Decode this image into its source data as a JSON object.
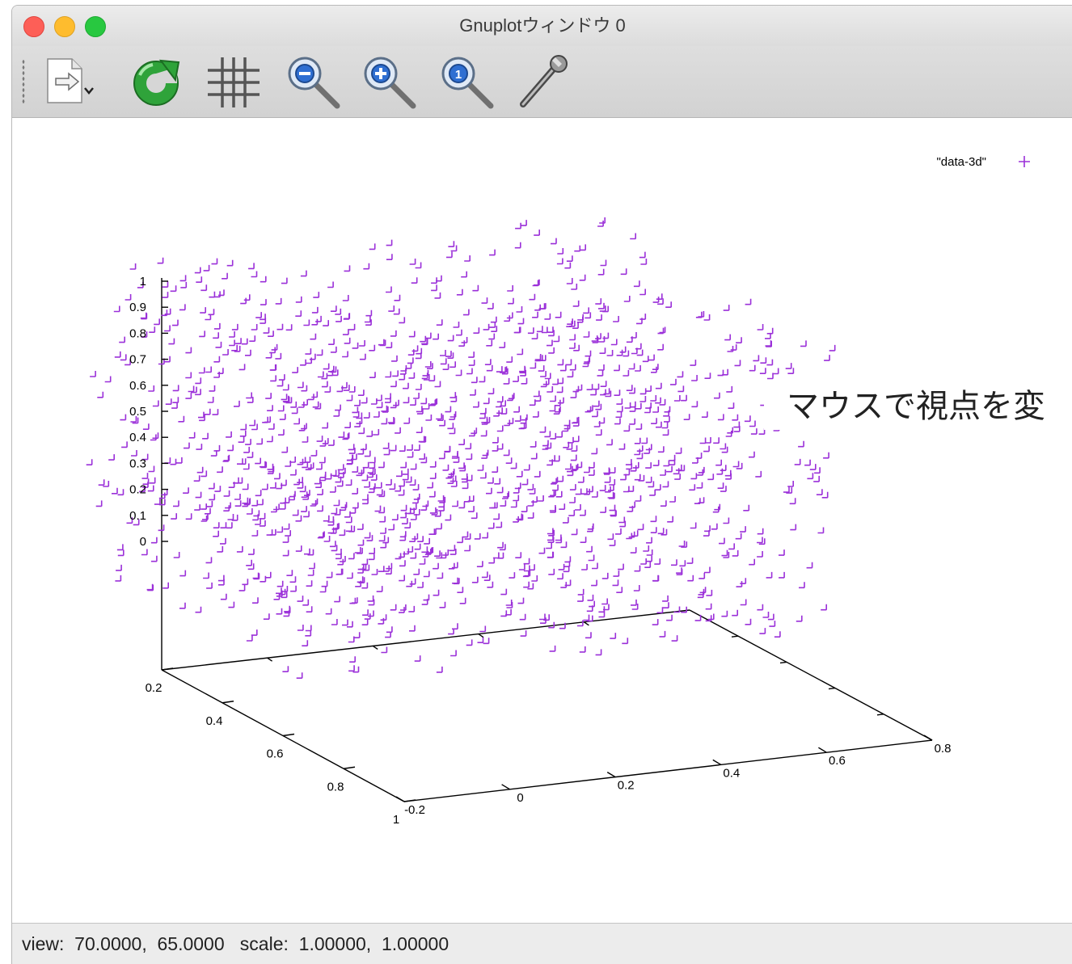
{
  "window": {
    "title": "Gnuplotウィンドウ 0"
  },
  "toolbar": {
    "buttons": [
      {
        "name": "export-button",
        "icon": "export-document-icon"
      },
      {
        "name": "replot-button",
        "icon": "refresh-icon"
      },
      {
        "name": "grid-button",
        "icon": "grid-icon"
      },
      {
        "name": "zoom-out-button",
        "icon": "zoom-out-icon"
      },
      {
        "name": "zoom-in-button",
        "icon": "zoom-in-icon"
      },
      {
        "name": "zoom-reset-button",
        "icon": "zoom-reset-icon"
      },
      {
        "name": "settings-button",
        "icon": "wrench-icon"
      }
    ]
  },
  "overlay": {
    "text": "マウスで視点を変"
  },
  "status": {
    "text": "view:  70.0000,  65.0000   scale:  1.00000,  1.00000"
  },
  "chart_data": {
    "type": "scatter",
    "view": [
      70,
      65
    ],
    "series": [
      {
        "name": "\"data-3d\"",
        "marker": "+",
        "color": "#9B30D9",
        "point_count": 1500
      }
    ],
    "x_ticks": [
      "0.2",
      "0.4",
      "0.6",
      "0.8",
      "1"
    ],
    "y_ticks": [
      "-0.2",
      "0",
      "0.2",
      "0.4",
      "0.6",
      "0.8"
    ],
    "z_ticks": [
      "1",
      "0.9",
      "0.8",
      "0.7",
      "0.6",
      "0.5",
      "0.4",
      "0.3",
      "0.2",
      "0.1",
      "0"
    ],
    "xlim": [
      0.2,
      1.0
    ],
    "ylim": [
      -0.2,
      0.8
    ],
    "zlim": [
      0,
      1
    ]
  }
}
